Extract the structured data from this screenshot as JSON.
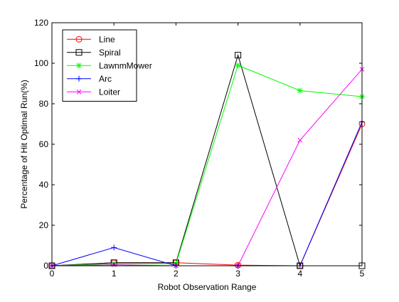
{
  "chart_data": {
    "type": "line",
    "xlabel": "Robot Observation Range",
    "ylabel": "Percentage of Hit Optimal Run(%)",
    "xlim": [
      0,
      5
    ],
    "ylim": [
      0,
      120
    ],
    "xticks": [
      0,
      1,
      2,
      3,
      4,
      5
    ],
    "yticks": [
      0,
      20,
      40,
      60,
      80,
      100,
      120
    ],
    "grid": false,
    "legend_position": "top-left",
    "x": [
      0,
      1,
      2,
      3,
      4,
      5
    ],
    "series": [
      {
        "name": "Line",
        "color": "#ff0000",
        "marker": "circle",
        "values": [
          0,
          1.5,
          1.5,
          0.3,
          0,
          70
        ]
      },
      {
        "name": "Spiral",
        "color": "#000000",
        "marker": "square",
        "values": [
          0,
          1.5,
          1.5,
          104,
          0,
          0
        ]
      },
      {
        "name": "LawnmMower",
        "color": "#00ff00",
        "marker": "asterisk",
        "values": [
          0,
          1,
          1,
          99,
          86.5,
          83.5
        ]
      },
      {
        "name": "Arc",
        "color": "#0000ff",
        "marker": "plus",
        "values": [
          0,
          9,
          0,
          0,
          0,
          71
        ]
      },
      {
        "name": "Loiter",
        "color": "#ff00ff",
        "marker": "cross",
        "values": [
          0,
          0.5,
          0,
          0,
          62,
          97
        ]
      }
    ]
  }
}
